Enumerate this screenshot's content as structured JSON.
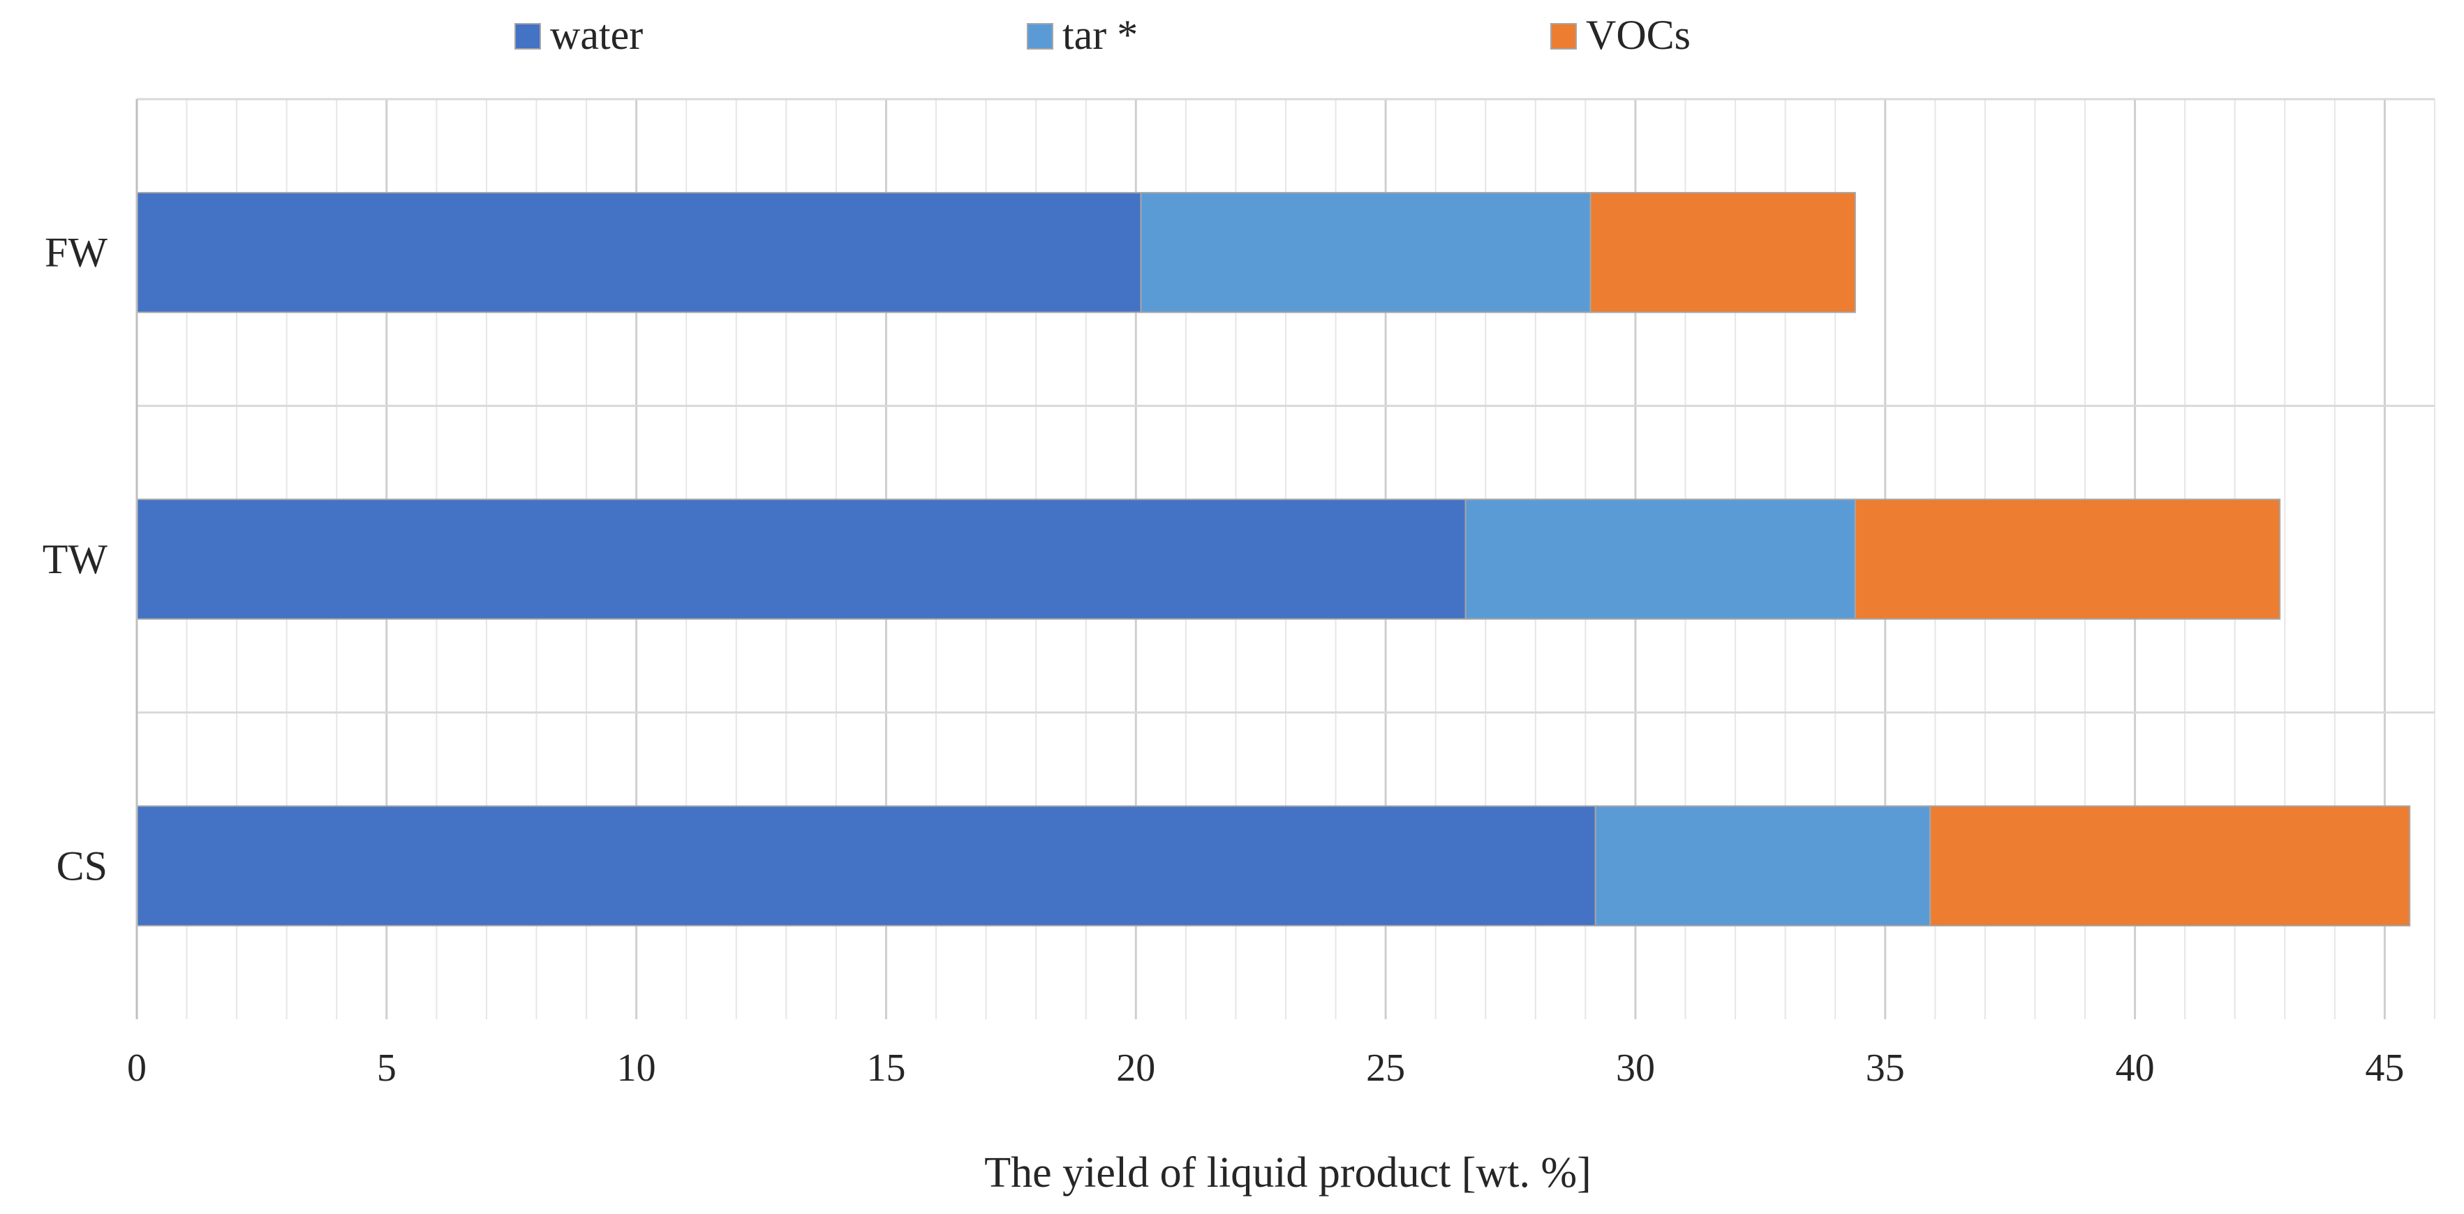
{
  "chart_data": {
    "type": "bar",
    "orientation": "horizontal",
    "stacked": true,
    "title": "",
    "categories": [
      "FW",
      "TW",
      "CS"
    ],
    "series": [
      {
        "name": "water",
        "color": "#4472C4",
        "values": [
          20.1,
          26.6,
          29.2
        ]
      },
      {
        "name": "tar *",
        "color": "#5B9BD5",
        "values": [
          9.0,
          7.8,
          6.7
        ]
      },
      {
        "name": "VOCs",
        "color": "#ED7D31",
        "values": [
          5.3,
          8.5,
          9.6
        ]
      }
    ],
    "xlabel": "The yield of liquid product [wt. %]",
    "ylabel": "",
    "xlim": [
      0,
      46
    ],
    "xticks": [
      "0",
      "5",
      "10",
      "15",
      "20",
      "25",
      "30",
      "35",
      "40",
      "45"
    ],
    "grid": true,
    "legend_position": "top"
  }
}
